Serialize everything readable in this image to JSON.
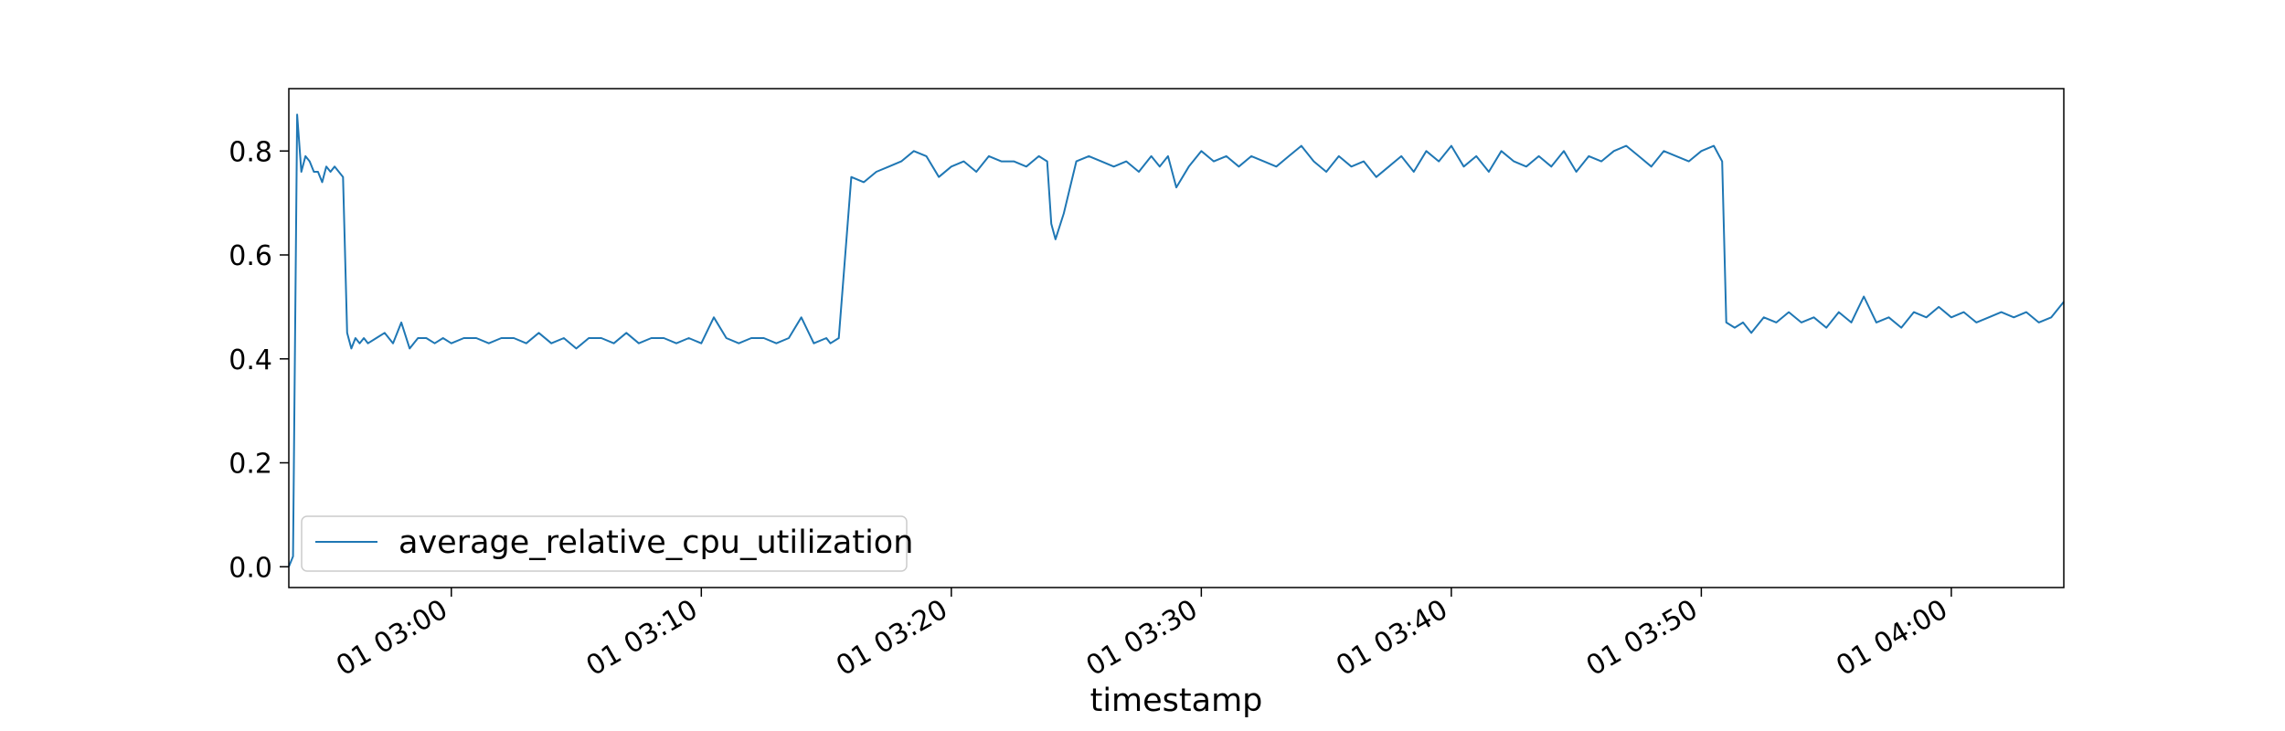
{
  "chart_data": {
    "type": "line",
    "title": "",
    "xlabel": "timestamp",
    "ylabel": "",
    "xlim": [
      "2014-03-01 02:53:30",
      "2014-03-01 04:04:30"
    ],
    "ylim": [
      -0.04,
      0.92
    ],
    "x_ticks": [
      {
        "value": "2014-03-01 03:00:00",
        "label": "01 03:00"
      },
      {
        "value": "2014-03-01 03:10:00",
        "label": "01 03:10"
      },
      {
        "value": "2014-03-01 03:20:00",
        "label": "01 03:20"
      },
      {
        "value": "2014-03-01 03:30:00",
        "label": "01 03:30"
      },
      {
        "value": "2014-03-01 03:40:00",
        "label": "01 03:40"
      },
      {
        "value": "2014-03-01 03:50:00",
        "label": "01 03:50"
      },
      {
        "value": "2014-03-01 04:00:00",
        "label": "01 04:00"
      }
    ],
    "y_ticks": [
      {
        "value": 0.0,
        "label": "0.0"
      },
      {
        "value": 0.2,
        "label": "0.2"
      },
      {
        "value": 0.4,
        "label": "0.4"
      },
      {
        "value": 0.6,
        "label": "0.6"
      },
      {
        "value": 0.8,
        "label": "0.8"
      }
    ],
    "grid": false,
    "legend_position": "lower-left",
    "series": [
      {
        "name": "average_relative_cpu_utilization",
        "color": "#1f77b4",
        "x": [
          "2014-03-01 02:53:30",
          "2014-03-01 02:53:40",
          "2014-03-01 02:53:50",
          "2014-03-01 02:54:00",
          "2014-03-01 02:54:10",
          "2014-03-01 02:54:20",
          "2014-03-01 02:54:30",
          "2014-03-01 02:54:40",
          "2014-03-01 02:54:50",
          "2014-03-01 02:55:00",
          "2014-03-01 02:55:10",
          "2014-03-01 02:55:20",
          "2014-03-01 02:55:30",
          "2014-03-01 02:55:40",
          "2014-03-01 02:55:50",
          "2014-03-01 02:56:00",
          "2014-03-01 02:56:10",
          "2014-03-01 02:56:20",
          "2014-03-01 02:56:30",
          "2014-03-01 02:56:40",
          "2014-03-01 02:57:00",
          "2014-03-01 02:57:20",
          "2014-03-01 02:57:40",
          "2014-03-01 02:58:00",
          "2014-03-01 02:58:20",
          "2014-03-01 02:58:40",
          "2014-03-01 02:59:00",
          "2014-03-01 02:59:20",
          "2014-03-01 02:59:40",
          "2014-03-01 03:00:00",
          "2014-03-01 03:00:30",
          "2014-03-01 03:01:00",
          "2014-03-01 03:01:30",
          "2014-03-01 03:02:00",
          "2014-03-01 03:02:30",
          "2014-03-01 03:03:00",
          "2014-03-01 03:03:30",
          "2014-03-01 03:04:00",
          "2014-03-01 03:04:30",
          "2014-03-01 03:05:00",
          "2014-03-01 03:05:30",
          "2014-03-01 03:06:00",
          "2014-03-01 03:06:30",
          "2014-03-01 03:07:00",
          "2014-03-01 03:07:30",
          "2014-03-01 03:08:00",
          "2014-03-01 03:08:30",
          "2014-03-01 03:09:00",
          "2014-03-01 03:09:30",
          "2014-03-01 03:10:00",
          "2014-03-01 03:10:30",
          "2014-03-01 03:11:00",
          "2014-03-01 03:11:30",
          "2014-03-01 03:12:00",
          "2014-03-01 03:12:30",
          "2014-03-01 03:13:00",
          "2014-03-01 03:13:30",
          "2014-03-01 03:14:00",
          "2014-03-01 03:14:30",
          "2014-03-01 03:15:00",
          "2014-03-01 03:15:10",
          "2014-03-01 03:15:30",
          "2014-03-01 03:16:00",
          "2014-03-01 03:16:30",
          "2014-03-01 03:17:00",
          "2014-03-01 03:17:30",
          "2014-03-01 03:18:00",
          "2014-03-01 03:18:30",
          "2014-03-01 03:19:00",
          "2014-03-01 03:19:30",
          "2014-03-01 03:20:00",
          "2014-03-01 03:20:30",
          "2014-03-01 03:21:00",
          "2014-03-01 03:21:30",
          "2014-03-01 03:22:00",
          "2014-03-01 03:22:30",
          "2014-03-01 03:23:00",
          "2014-03-01 03:23:30",
          "2014-03-01 03:23:50",
          "2014-03-01 03:24:00",
          "2014-03-01 03:24:10",
          "2014-03-01 03:24:30",
          "2014-03-01 03:25:00",
          "2014-03-01 03:25:30",
          "2014-03-01 03:26:00",
          "2014-03-01 03:26:30",
          "2014-03-01 03:27:00",
          "2014-03-01 03:27:30",
          "2014-03-01 03:28:00",
          "2014-03-01 03:28:20",
          "2014-03-01 03:28:40",
          "2014-03-01 03:29:00",
          "2014-03-01 03:29:30",
          "2014-03-01 03:30:00",
          "2014-03-01 03:30:30",
          "2014-03-01 03:31:00",
          "2014-03-01 03:31:30",
          "2014-03-01 03:32:00",
          "2014-03-01 03:32:30",
          "2014-03-01 03:33:00",
          "2014-03-01 03:33:30",
          "2014-03-01 03:34:00",
          "2014-03-01 03:34:30",
          "2014-03-01 03:35:00",
          "2014-03-01 03:35:30",
          "2014-03-01 03:36:00",
          "2014-03-01 03:36:30",
          "2014-03-01 03:37:00",
          "2014-03-01 03:37:30",
          "2014-03-01 03:38:00",
          "2014-03-01 03:38:30",
          "2014-03-01 03:39:00",
          "2014-03-01 03:39:30",
          "2014-03-01 03:40:00",
          "2014-03-01 03:40:30",
          "2014-03-01 03:41:00",
          "2014-03-01 03:41:30",
          "2014-03-01 03:42:00",
          "2014-03-01 03:42:30",
          "2014-03-01 03:43:00",
          "2014-03-01 03:43:30",
          "2014-03-01 03:44:00",
          "2014-03-01 03:44:30",
          "2014-03-01 03:45:00",
          "2014-03-01 03:45:30",
          "2014-03-01 03:46:00",
          "2014-03-01 03:46:30",
          "2014-03-01 03:47:00",
          "2014-03-01 03:47:30",
          "2014-03-01 03:48:00",
          "2014-03-01 03:48:30",
          "2014-03-01 03:49:00",
          "2014-03-01 03:49:30",
          "2014-03-01 03:50:00",
          "2014-03-01 03:50:30",
          "2014-03-01 03:50:50",
          "2014-03-01 03:51:00",
          "2014-03-01 03:51:20",
          "2014-03-01 03:51:40",
          "2014-03-01 03:52:00",
          "2014-03-01 03:52:30",
          "2014-03-01 03:53:00",
          "2014-03-01 03:53:30",
          "2014-03-01 03:54:00",
          "2014-03-01 03:54:30",
          "2014-03-01 03:55:00",
          "2014-03-01 03:55:30",
          "2014-03-01 03:56:00",
          "2014-03-01 03:56:30",
          "2014-03-01 03:57:00",
          "2014-03-01 03:57:30",
          "2014-03-01 03:58:00",
          "2014-03-01 03:58:30",
          "2014-03-01 03:59:00",
          "2014-03-01 03:59:30",
          "2014-03-01 04:00:00",
          "2014-03-01 04:00:30",
          "2014-03-01 04:01:00",
          "2014-03-01 04:01:30",
          "2014-03-01 04:02:00",
          "2014-03-01 04:02:30",
          "2014-03-01 04:03:00",
          "2014-03-01 04:03:30",
          "2014-03-01 04:04:00",
          "2014-03-01 04:04:30"
        ],
        "y": [
          0.0,
          0.02,
          0.87,
          0.76,
          0.79,
          0.78,
          0.76,
          0.76,
          0.74,
          0.77,
          0.76,
          0.77,
          0.76,
          0.75,
          0.45,
          0.42,
          0.44,
          0.43,
          0.44,
          0.43,
          0.44,
          0.45,
          0.43,
          0.47,
          0.42,
          0.44,
          0.44,
          0.43,
          0.44,
          0.43,
          0.44,
          0.44,
          0.43,
          0.44,
          0.44,
          0.43,
          0.45,
          0.43,
          0.44,
          0.42,
          0.44,
          0.44,
          0.43,
          0.45,
          0.43,
          0.44,
          0.44,
          0.43,
          0.44,
          0.43,
          0.48,
          0.44,
          0.43,
          0.44,
          0.44,
          0.43,
          0.44,
          0.48,
          0.43,
          0.44,
          0.43,
          0.44,
          0.75,
          0.74,
          0.76,
          0.77,
          0.78,
          0.8,
          0.79,
          0.75,
          0.77,
          0.78,
          0.76,
          0.79,
          0.78,
          0.78,
          0.77,
          0.79,
          0.78,
          0.66,
          0.63,
          0.68,
          0.78,
          0.79,
          0.78,
          0.77,
          0.78,
          0.76,
          0.79,
          0.77,
          0.79,
          0.73,
          0.77,
          0.8,
          0.78,
          0.79,
          0.77,
          0.79,
          0.78,
          0.77,
          0.79,
          0.81,
          0.78,
          0.76,
          0.79,
          0.77,
          0.78,
          0.75,
          0.77,
          0.79,
          0.76,
          0.8,
          0.78,
          0.81,
          0.77,
          0.79,
          0.76,
          0.8,
          0.78,
          0.77,
          0.79,
          0.77,
          0.8,
          0.76,
          0.79,
          0.78,
          0.8,
          0.81,
          0.79,
          0.77,
          0.8,
          0.79,
          0.78,
          0.8,
          0.81,
          0.78,
          0.47,
          0.46,
          0.47,
          0.45,
          0.48,
          0.47,
          0.49,
          0.47,
          0.48,
          0.46,
          0.49,
          0.47,
          0.52,
          0.47,
          0.48,
          0.46,
          0.49,
          0.48,
          0.5,
          0.48,
          0.49,
          0.47,
          0.48,
          0.49,
          0.48,
          0.49,
          0.47,
          0.48,
          0.51
        ]
      }
    ]
  }
}
